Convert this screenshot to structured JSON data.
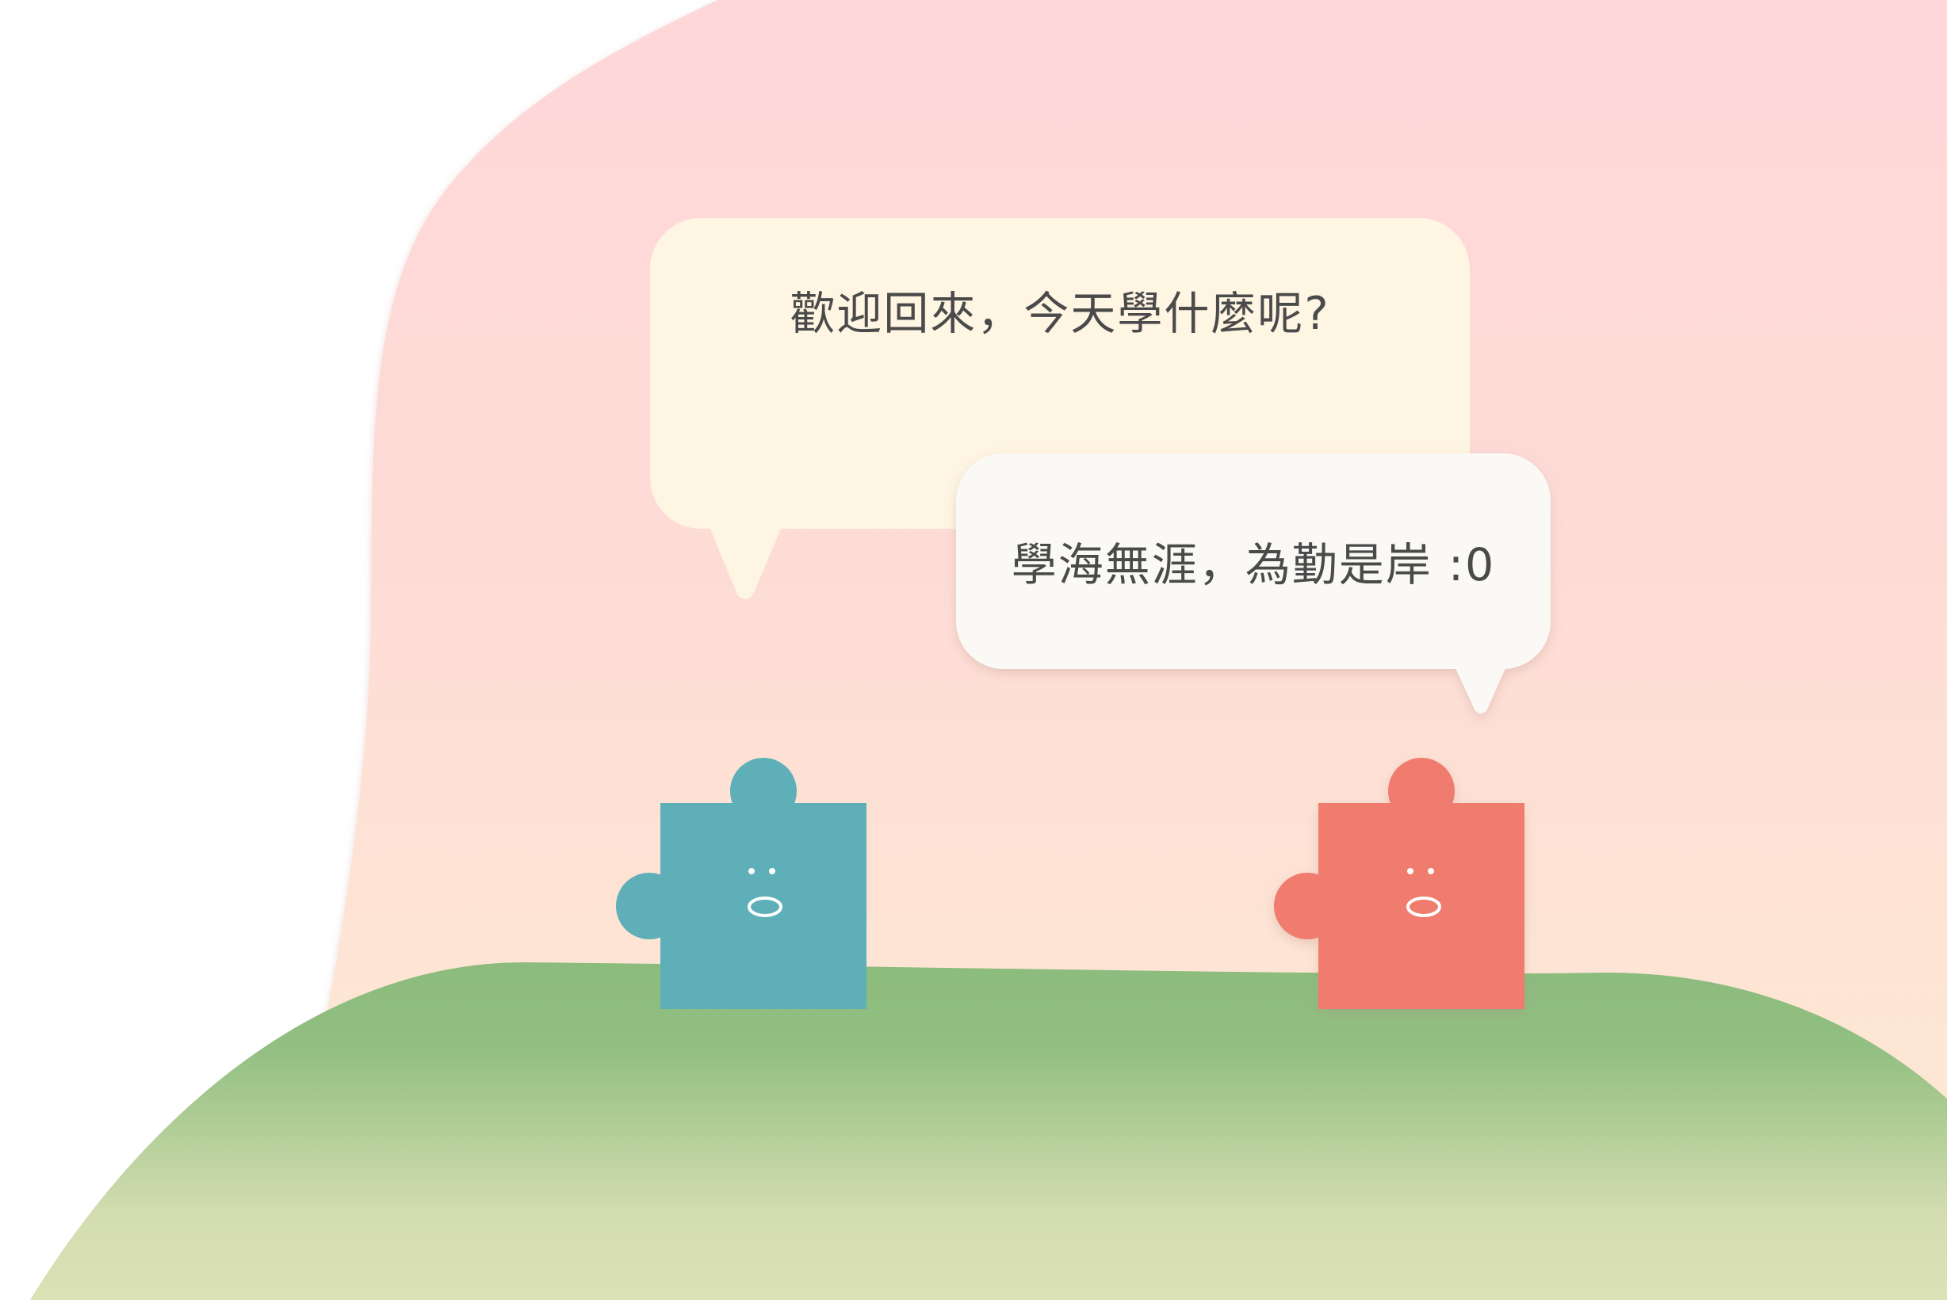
{
  "dialogue": {
    "bubble_1_text": "歡迎回來，今天學什麼呢?",
    "bubble_2_text": "學海無涯，為勤是岸 :0"
  },
  "colors": {
    "sky_top": "#fed8d8",
    "sky_bottom": "#fdebd2",
    "grass_top": "#8bbb7d",
    "grass_bottom": "#dbe2b6",
    "bubble_1_fill": "#fef5e2",
    "bubble_2_fill": "#fbf9f6",
    "puzzle_blue": "#5eafb8",
    "puzzle_red": "#ef7b6e",
    "text": "#4a4a4a"
  }
}
